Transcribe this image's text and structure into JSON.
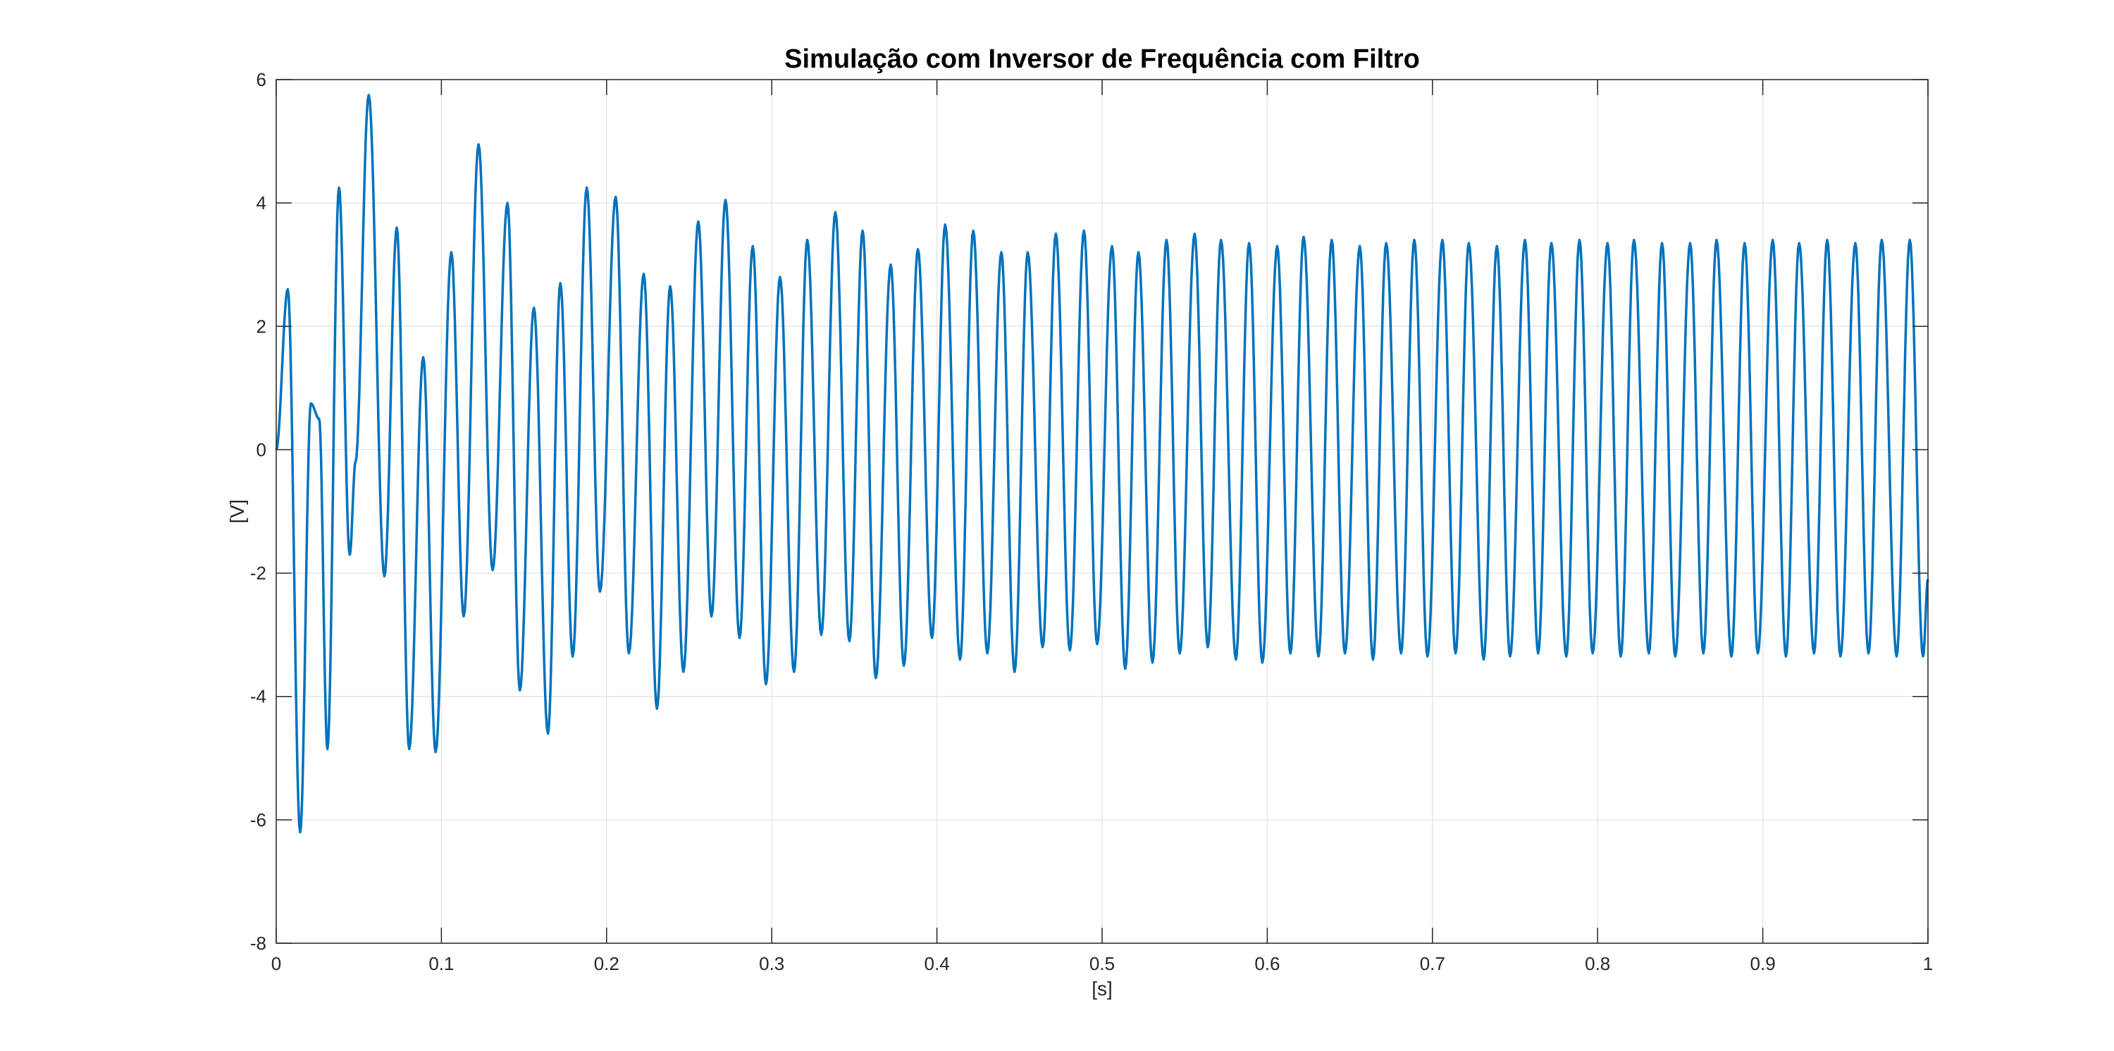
{
  "chart_data": {
    "type": "line",
    "title": "Simulação com Inversor de Frequência com Filtro",
    "xlabel": "[s]",
    "ylabel": "[V]",
    "xlim": [
      0,
      1
    ],
    "ylim": [
      -8,
      6
    ],
    "xticks": [
      0,
      0.1,
      0.2,
      0.3,
      0.4,
      0.5,
      0.6,
      0.7,
      0.8,
      0.9,
      1
    ],
    "xtick_labels": [
      "0",
      "0.1",
      "0.2",
      "0.3",
      "0.4",
      "0.5",
      "0.6",
      "0.7",
      "0.8",
      "0.9",
      "1"
    ],
    "yticks": [
      -8,
      -6,
      -4,
      -2,
      0,
      2,
      4,
      6
    ],
    "ytick_labels": [
      "-8",
      "-6",
      "-4",
      "-2",
      "0",
      "2",
      "4",
      "6"
    ],
    "grid": true,
    "line_color": "#0072BD",
    "grid_color": "#e6e6e6",
    "axis_color": "#262626",
    "series": [
      {
        "x": [
          0,
          0.007,
          0.0145,
          0.021,
          0.026,
          0.031,
          0.038,
          0.0445,
          0.048,
          0.056,
          0.0655,
          0.073,
          0.0805,
          0.089,
          0.0965,
          0.106,
          0.1135,
          0.1225,
          0.131,
          0.14,
          0.1475,
          0.156,
          0.1645,
          0.172,
          0.1795,
          0.188,
          0.196,
          0.2055,
          0.2135,
          0.2225,
          0.2305,
          0.2385,
          0.2465,
          0.2555,
          0.2635,
          0.272,
          0.2805,
          0.2885,
          0.2965,
          0.305,
          0.3135,
          0.3215,
          0.33,
          0.3385,
          0.347,
          0.355,
          0.363,
          0.372,
          0.38,
          0.3885,
          0.397,
          0.405,
          0.414,
          0.422,
          0.4305,
          0.439,
          0.447,
          0.455,
          0.464,
          0.472,
          0.4805,
          0.489,
          0.497,
          0.506,
          0.514,
          0.522,
          0.5305,
          0.539,
          0.547,
          0.556,
          0.564,
          0.572,
          0.581,
          0.589,
          0.597,
          0.606,
          0.614,
          0.622,
          0.631,
          0.639,
          0.647,
          0.656,
          0.664,
          0.672,
          0.681,
          0.689,
          0.697,
          0.706,
          0.714,
          0.722,
          0.731,
          0.739,
          0.747,
          0.756,
          0.764,
          0.772,
          0.781,
          0.789,
          0.797,
          0.806,
          0.814,
          0.822,
          0.831,
          0.839,
          0.847,
          0.856,
          0.864,
          0.872,
          0.881,
          0.889,
          0.897,
          0.906,
          0.914,
          0.922,
          0.931,
          0.939,
          0.947,
          0.956,
          0.964,
          0.972,
          0.981,
          0.989,
          0.997,
          1.0
        ],
        "y": [
          0,
          2.6,
          -6.2,
          0.75,
          0.5,
          -4.85,
          4.25,
          -1.7,
          -0.2,
          5.75,
          -2.05,
          3.6,
          -4.85,
          1.5,
          -4.9,
          3.2,
          -2.7,
          4.95,
          -1.95,
          4.0,
          -3.9,
          2.3,
          -4.6,
          2.7,
          -3.35,
          4.25,
          -2.3,
          4.1,
          -3.3,
          2.85,
          -4.2,
          2.65,
          -3.6,
          3.7,
          -2.7,
          4.05,
          -3.05,
          3.3,
          -3.8,
          2.8,
          -3.6,
          3.4,
          -3.0,
          3.85,
          -3.1,
          3.55,
          -3.7,
          3.0,
          -3.5,
          3.25,
          -3.05,
          3.65,
          -3.4,
          3.55,
          -3.3,
          3.2,
          -3.6,
          3.2,
          -3.2,
          3.5,
          -3.25,
          3.55,
          -3.15,
          3.3,
          -3.55,
          3.2,
          -3.45,
          3.4,
          -3.3,
          3.5,
          -3.2,
          3.4,
          -3.4,
          3.35,
          -3.45,
          3.3,
          -3.3,
          3.45,
          -3.35,
          3.4,
          -3.3,
          3.3,
          -3.4,
          3.35,
          -3.3,
          3.4,
          -3.35,
          3.4,
          -3.3,
          3.35,
          -3.4,
          3.3,
          -3.35,
          3.4,
          -3.3,
          3.35,
          -3.35,
          3.4,
          -3.3,
          3.35,
          -3.35,
          3.4,
          -3.3,
          3.35,
          -3.35,
          3.35,
          -3.3,
          3.4,
          -3.35,
          3.35,
          -3.3,
          3.4,
          -3.35,
          3.35,
          -3.3,
          3.4,
          -3.35,
          3.35,
          -3.3,
          3.4,
          -3.35,
          3.4,
          -3.35,
          -2.1
        ]
      }
    ]
  }
}
